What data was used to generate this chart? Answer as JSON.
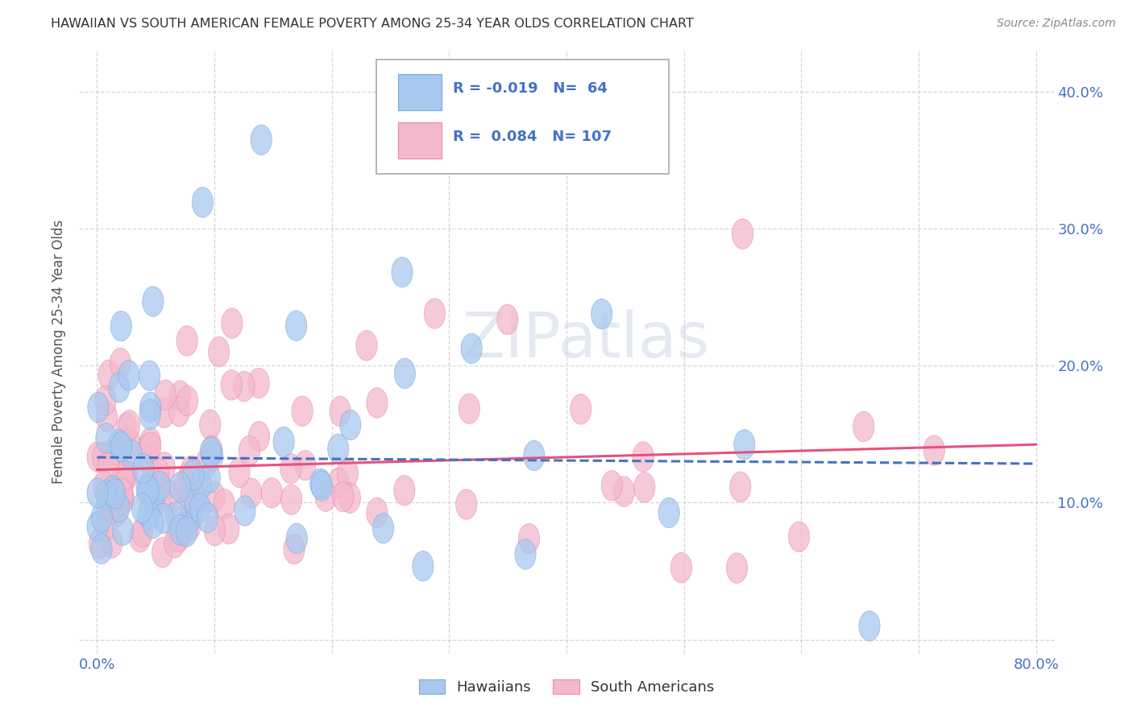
{
  "title": "HAWAIIAN VS SOUTH AMERICAN FEMALE POVERTY AMONG 25-34 YEAR OLDS CORRELATION CHART",
  "source": "Source: ZipAtlas.com",
  "ylabel": "Female Poverty Among 25-34 Year Olds",
  "hawaiian_color": "#a8c8f0",
  "hawaiian_edge_color": "#7baad8",
  "south_american_color": "#f4b8cc",
  "south_american_edge_color": "#e88aaa",
  "hawaiian_line_color": "#4472c4",
  "south_american_line_color": "#e8507a",
  "legend_R_hawaiian": "-0.019",
  "legend_N_hawaiian": "64",
  "legend_R_south_american": "0.084",
  "legend_N_south_american": "107",
  "watermark": "ZIPatlas",
  "tick_color": "#4472c4",
  "grid_color": "#cccccc",
  "title_color": "#333333",
  "ylabel_color": "#555555"
}
